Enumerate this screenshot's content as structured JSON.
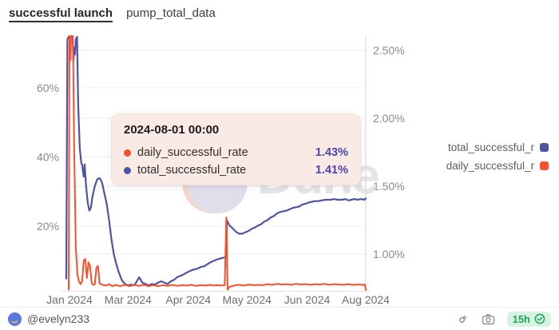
{
  "header": {
    "title": "successful launch",
    "query_name": "pump_total_data"
  },
  "watermark": {
    "text": "Dune"
  },
  "tooltip": {
    "title": "2024-08-01 00:00",
    "rows": [
      {
        "label": "daily_successful_rate",
        "value": "1.43%",
        "color": "#F4512C"
      },
      {
        "label": "total_successful_rate",
        "value": "1.41%",
        "color": "#4E54A3"
      }
    ]
  },
  "legend": {
    "items": [
      {
        "label": "total_successful_r",
        "color": "#4E54A3"
      },
      {
        "label": "daily_successful_r",
        "color": "#F4512C"
      }
    ]
  },
  "footer": {
    "handle": "@evelyn233",
    "refresh_badge": "15h"
  },
  "colors": {
    "accent_orange": "#F4512C",
    "accent_indigo": "#4E54A3",
    "tooltip_bg": "#FAEAE5",
    "badge_green": "#1FA35C"
  },
  "chart_data": {
    "type": "line",
    "title": "successful launch",
    "grid": true,
    "legend_position": "right",
    "x_axis": {
      "start_date": "2024-01-25",
      "end_date": "2024-08-01",
      "total_days": 189,
      "ticks": [
        {
          "label": "Jan 2024",
          "day": 2
        },
        {
          "label": "Mar 2024",
          "day": 39
        },
        {
          "label": "Apr 2024",
          "day": 77
        },
        {
          "label": "May 2024",
          "day": 114
        },
        {
          "label": "Jun 2024",
          "day": 152
        },
        {
          "label": "Aug 2024",
          "day": 189
        }
      ]
    },
    "left_axis": {
      "unit": "%",
      "range": [
        1.5,
        75.0
      ],
      "ticks": [
        {
          "label": "20%",
          "value": 20
        },
        {
          "label": "40%",
          "value": 40
        },
        {
          "label": "60%",
          "value": 60
        }
      ]
    },
    "right_axis": {
      "unit": "%",
      "range": [
        0.735,
        2.606
      ],
      "ticks": [
        {
          "label": "1.00%",
          "value": 1.0
        },
        {
          "label": "1.50%",
          "value": 1.5
        },
        {
          "label": "2.00%",
          "value": 2.0
        },
        {
          "label": "2.50%",
          "value": 2.5
        }
      ]
    },
    "series": [
      {
        "name": "total_successful_rate",
        "color": "#4E54A3",
        "axis": "right",
        "width": 2.2,
        "points": [
          [
            0,
            0.82
          ],
          [
            0.7,
            2.58
          ],
          [
            1.5,
            2.6
          ],
          [
            4,
            2.6
          ],
          [
            4.5,
            2.42
          ],
          [
            5,
            2.52
          ],
          [
            5.5,
            2.47
          ],
          [
            6,
            2.58
          ],
          [
            6.8,
            2.6
          ],
          [
            7.5,
            2.1
          ],
          [
            8.5,
            1.78
          ],
          [
            9.5,
            1.67
          ],
          [
            10,
            1.66
          ],
          [
            11,
            1.57
          ],
          [
            11.6,
            1.66
          ],
          [
            12.5,
            1.5
          ],
          [
            13.5,
            1.38
          ],
          [
            14.5,
            1.32
          ],
          [
            15.5,
            1.34
          ],
          [
            16.5,
            1.42
          ],
          [
            18,
            1.5
          ],
          [
            19.5,
            1.55
          ],
          [
            21,
            1.56
          ],
          [
            22.5,
            1.53
          ],
          [
            24,
            1.45
          ],
          [
            25.5,
            1.37
          ],
          [
            27,
            1.25
          ],
          [
            28.5,
            1.11
          ],
          [
            30,
            1.0
          ],
          [
            31.5,
            0.93
          ],
          [
            33,
            0.87
          ],
          [
            35,
            0.81
          ],
          [
            37,
            0.78
          ],
          [
            39,
            0.77
          ],
          [
            41,
            0.775
          ],
          [
            43,
            0.77
          ],
          [
            45,
            0.81
          ],
          [
            46,
            0.83
          ],
          [
            48,
            0.79
          ],
          [
            50,
            0.78
          ],
          [
            52,
            0.77
          ],
          [
            54,
            0.78
          ],
          [
            56,
            0.775
          ],
          [
            58,
            0.79
          ],
          [
            60,
            0.8
          ],
          [
            62,
            0.79
          ],
          [
            64,
            0.78
          ],
          [
            66,
            0.8
          ],
          [
            68,
            0.81
          ],
          [
            70,
            0.83
          ],
          [
            72,
            0.84
          ],
          [
            74,
            0.85
          ],
          [
            77,
            0.87
          ],
          [
            80,
            0.885
          ],
          [
            82,
            0.89
          ],
          [
            85,
            0.905
          ],
          [
            87,
            0.91
          ],
          [
            89,
            0.925
          ],
          [
            91,
            0.94
          ],
          [
            93,
            0.95
          ],
          [
            95,
            0.96
          ],
          [
            98,
            0.97
          ],
          [
            100,
            0.975
          ],
          [
            101,
            0.98
          ],
          [
            101.3,
            1.25
          ],
          [
            103,
            1.21
          ],
          [
            105,
            1.19
          ],
          [
            107,
            1.165
          ],
          [
            109,
            1.15
          ],
          [
            111,
            1.15
          ],
          [
            113,
            1.16
          ],
          [
            115,
            1.17
          ],
          [
            117,
            1.185
          ],
          [
            119,
            1.195
          ],
          [
            121,
            1.21
          ],
          [
            123,
            1.22
          ],
          [
            125,
            1.24
          ],
          [
            127,
            1.25
          ],
          [
            129,
            1.27
          ],
          [
            131,
            1.28
          ],
          [
            133,
            1.3
          ],
          [
            135,
            1.31
          ],
          [
            137,
            1.315
          ],
          [
            139,
            1.32
          ],
          [
            141,
            1.33
          ],
          [
            143,
            1.34
          ],
          [
            145,
            1.345
          ],
          [
            147,
            1.35
          ],
          [
            149,
            1.365
          ],
          [
            151,
            1.37
          ],
          [
            153,
            1.38
          ],
          [
            155,
            1.385
          ],
          [
            157,
            1.39
          ],
          [
            159,
            1.39
          ],
          [
            161,
            1.395
          ],
          [
            164,
            1.4
          ],
          [
            167,
            1.4
          ],
          [
            169,
            1.405
          ],
          [
            171,
            1.4
          ],
          [
            174,
            1.4
          ],
          [
            176,
            1.405
          ],
          [
            178,
            1.395
          ],
          [
            180,
            1.4
          ],
          [
            182,
            1.405
          ],
          [
            184,
            1.4
          ],
          [
            186,
            1.405
          ],
          [
            188,
            1.4
          ],
          [
            189,
            1.41
          ]
        ]
      },
      {
        "name": "daily_successful_rate",
        "color": "#F4512C",
        "axis": "left",
        "width": 2,
        "points": [
          [
            1.5,
            1.6
          ],
          [
            2,
            75
          ],
          [
            2.6,
            68
          ],
          [
            3,
            75
          ],
          [
            4.2,
            75
          ],
          [
            5,
            42
          ],
          [
            6,
            14
          ],
          [
            7,
            6
          ],
          [
            8,
            4
          ],
          [
            9,
            3.2
          ],
          [
            10,
            4
          ],
          [
            11,
            10
          ],
          [
            12,
            10.5
          ],
          [
            13,
            5
          ],
          [
            14,
            9.5
          ],
          [
            15,
            8.5
          ],
          [
            16,
            3.5
          ],
          [
            17,
            3
          ],
          [
            18,
            3.2
          ],
          [
            19,
            8
          ],
          [
            20,
            8.5
          ],
          [
            21,
            3.4
          ],
          [
            23,
            3
          ],
          [
            25,
            2.8
          ],
          [
            27,
            3.2
          ],
          [
            29,
            2.6
          ],
          [
            31,
            3
          ],
          [
            34,
            2.6
          ],
          [
            37,
            3
          ],
          [
            40,
            2.6
          ],
          [
            43,
            3
          ],
          [
            46,
            2.7
          ],
          [
            49,
            3
          ],
          [
            52,
            2.6
          ],
          [
            55,
            2.9
          ],
          [
            58,
            2.6
          ],
          [
            61,
            2.9
          ],
          [
            64,
            2.7
          ],
          [
            67,
            3
          ],
          [
            70,
            2.7
          ],
          [
            73,
            2.9
          ],
          [
            76,
            2.8
          ],
          [
            79,
            3
          ],
          [
            82,
            2.7
          ],
          [
            85,
            2.9
          ],
          [
            88,
            2.8
          ],
          [
            91,
            3
          ],
          [
            93,
            2.8
          ],
          [
            95,
            2.9
          ],
          [
            98,
            2.8
          ],
          [
            100,
            2.9
          ],
          [
            101,
            22.5
          ],
          [
            101.8,
            1.6
          ],
          [
            103,
            2.4
          ],
          [
            105,
            2.7
          ],
          [
            107,
            2.9
          ],
          [
            109,
            3
          ],
          [
            112,
            2.8
          ],
          [
            115,
            3.1
          ],
          [
            118,
            2.9
          ],
          [
            121,
            3
          ],
          [
            124,
            2.9
          ],
          [
            127,
            3.2
          ],
          [
            130,
            3
          ],
          [
            133,
            3.3
          ],
          [
            136,
            3.1
          ],
          [
            139,
            3.2
          ],
          [
            142,
            3
          ],
          [
            145,
            3.3
          ],
          [
            148,
            3.1
          ],
          [
            151,
            3.2
          ],
          [
            154,
            3
          ],
          [
            157,
            3.2
          ],
          [
            160,
            3.1
          ],
          [
            163,
            3.3
          ],
          [
            166,
            3
          ],
          [
            169,
            3.2
          ],
          [
            172,
            3.1
          ],
          [
            175,
            3
          ],
          [
            178,
            3.2
          ],
          [
            181,
            3
          ],
          [
            184,
            3.1
          ],
          [
            187,
            3
          ],
          [
            188.5,
            3.1
          ],
          [
            189,
            1.43
          ]
        ]
      }
    ]
  }
}
